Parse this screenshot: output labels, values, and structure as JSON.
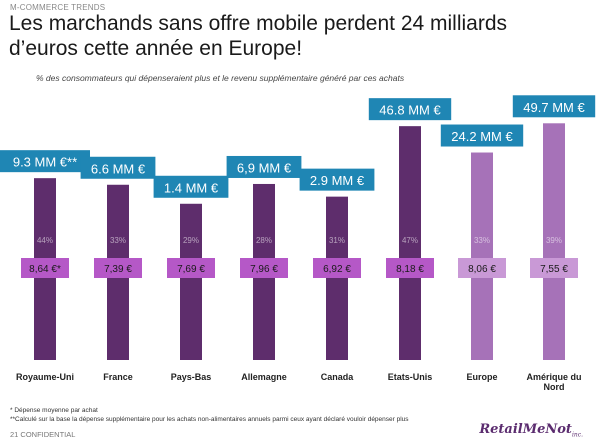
{
  "header": {
    "section_label": "M-COMMERCE TRENDS",
    "title_line1": "Les marchands sans offre mobile perdent 24 milliards",
    "title_line2": "d’euros cette année en Europe!",
    "subtitle": "% des consommateurs qui dépenseraient plus et le revenu supplémentaire généré par ces achats"
  },
  "chart_data": {
    "type": "bar",
    "categories": [
      "Royaume-Uni",
      "France",
      "Pays-Bas",
      "Allemagne",
      "Canada",
      "Etats-Unis",
      "Europe",
      "Amérique du Nord"
    ],
    "category_lines": [
      [
        "Royaume-Uni"
      ],
      [
        "France"
      ],
      [
        "Pays-Bas"
      ],
      [
        "Allemagne"
      ],
      [
        "Canada"
      ],
      [
        "Etats-Unis"
      ],
      [
        "Europe"
      ],
      [
        "Amérique du",
        "Nord"
      ]
    ],
    "revenue_labels": [
      "9.3 MM €**",
      "6.6 MM €",
      "1.4 MM €",
      "6,9 MM €",
      "2.9 MM €",
      "46.8 MM €",
      "24.2 MM €",
      "49.7 MM €"
    ],
    "revenue_values": [
      9.3,
      6.6,
      1.4,
      6.9,
      2.9,
      46.8,
      24.2,
      49.7
    ],
    "percent_labels": [
      "44%",
      "33%",
      "29%",
      "28%",
      "31%",
      "47%",
      "33%",
      "39%"
    ],
    "percent_values": [
      44,
      33,
      29,
      28,
      31,
      47,
      33,
      39
    ],
    "spend_labels": [
      "8,64 €*",
      "7,39 €",
      "7,69 €",
      "7,96 €",
      "6,92 €",
      "8,18 €",
      "8,06 €",
      "7,55 €"
    ],
    "spend_values": [
      8.64,
      7.39,
      7.69,
      7.96,
      6.92,
      8.18,
      8.06,
      7.55
    ],
    "bar_colors": [
      "#5e2d6c",
      "#5e2d6c",
      "#5e2d6c",
      "#5e2d6c",
      "#5e2d6c",
      "#5e2d6c",
      "#a672b8",
      "#a672b8"
    ],
    "spend_box_colors": [
      "#b558c7",
      "#b558c7",
      "#b558c7",
      "#b558c7",
      "#b558c7",
      "#b558c7",
      "#c999d6",
      "#c999d6"
    ],
    "label_box_color": "#1f86b4",
    "ylim": [
      0,
      50
    ],
    "grid": false,
    "legend": "none"
  },
  "footnotes": {
    "note1": "* Dépense moyenne par achat",
    "note2": "**Calculé sur la base la dépense supplémentaire pour les achats non-alimentaires annuels parmi ceux ayant déclaré vouloir dépenser plus"
  },
  "footer": {
    "page_label": "21  CONFIDENTIAL",
    "logo_text": "RetailMeNot",
    "logo_suffix": "inc."
  }
}
